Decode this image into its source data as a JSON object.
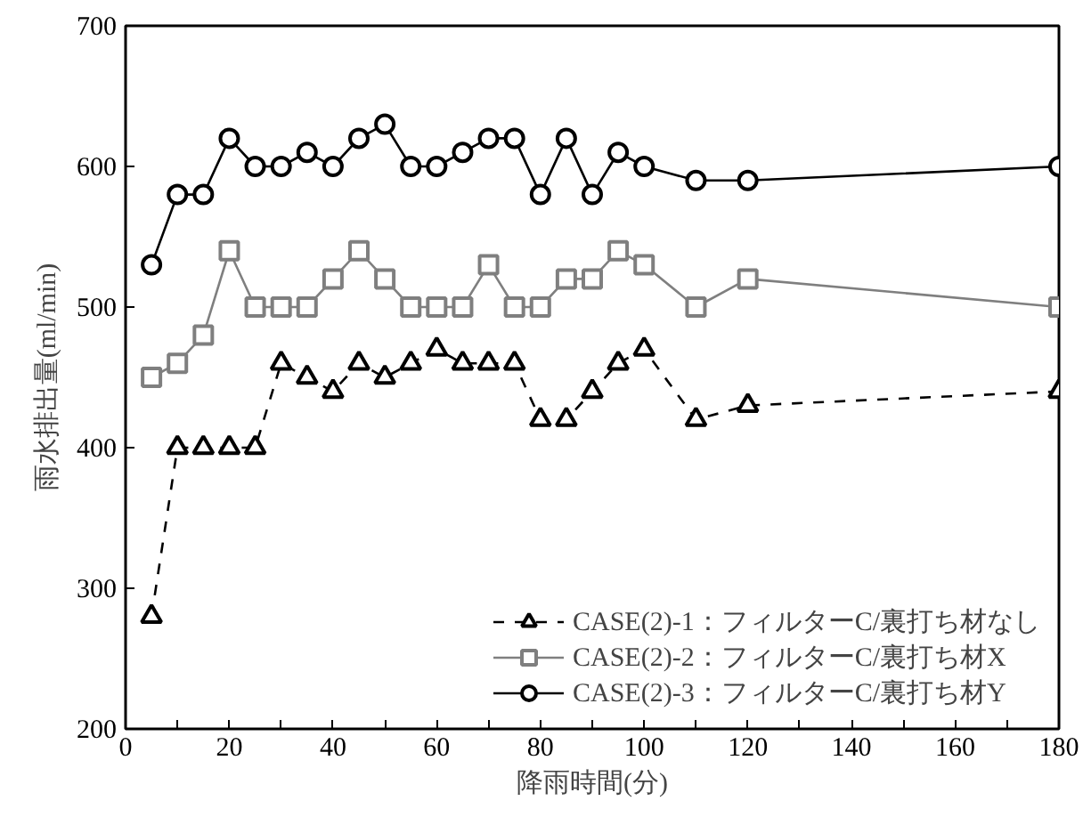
{
  "chart_data": {
    "type": "line",
    "xlabel": "降雨時間(分)",
    "ylabel": "雨水排出量(ml/min)",
    "x": [
      5,
      10,
      15,
      20,
      25,
      30,
      35,
      40,
      45,
      50,
      55,
      60,
      65,
      70,
      75,
      80,
      85,
      90,
      95,
      100,
      110,
      120,
      180
    ],
    "series": [
      {
        "name": "CASE(2)-1：フィルターC/裏打ち材なし",
        "color": "#000000",
        "marker": "triangle",
        "line_style": "dashed",
        "values": [
          280,
          400,
          400,
          400,
          400,
          460,
          450,
          440,
          460,
          450,
          460,
          470,
          460,
          460,
          460,
          420,
          420,
          440,
          460,
          470,
          420,
          430,
          440
        ]
      },
      {
        "name": "CASE(2)-2：フィルターC/裏打ち材X",
        "color": "#7f7f7f",
        "marker": "square",
        "line_style": "solid",
        "values": [
          450,
          460,
          480,
          540,
          500,
          500,
          500,
          520,
          540,
          520,
          500,
          500,
          500,
          530,
          500,
          500,
          520,
          520,
          540,
          530,
          500,
          520,
          500
        ]
      },
      {
        "name": "CASE(2)-3：フィルターC/裏打ち材Y",
        "color": "#000000",
        "marker": "circle",
        "line_style": "solid",
        "values": [
          530,
          580,
          580,
          620,
          600,
          600,
          610,
          600,
          620,
          630,
          600,
          600,
          610,
          620,
          620,
          580,
          620,
          580,
          610,
          600,
          590,
          590,
          600
        ]
      }
    ],
    "xlim": [
      0,
      180
    ],
    "ylim": [
      200,
      700
    ],
    "xticks": [
      0,
      {
        "value": 10,
        "label": null
      },
      20,
      {
        "value": 30,
        "label": null
      },
      40,
      {
        "value": 50,
        "label": null
      },
      60,
      {
        "value": 70,
        "label": null
      },
      80,
      {
        "value": 90,
        "label": null
      },
      100,
      {
        "value": 110,
        "label": null
      },
      120,
      {
        "value": 130,
        "label": null
      },
      140,
      {
        "value": 150,
        "label": null
      },
      160,
      {
        "value": 170,
        "label": null
      },
      180
    ],
    "yticks": [
      200,
      300,
      400,
      500,
      600,
      700
    ],
    "grid": false,
    "legend": "bottom right"
  }
}
